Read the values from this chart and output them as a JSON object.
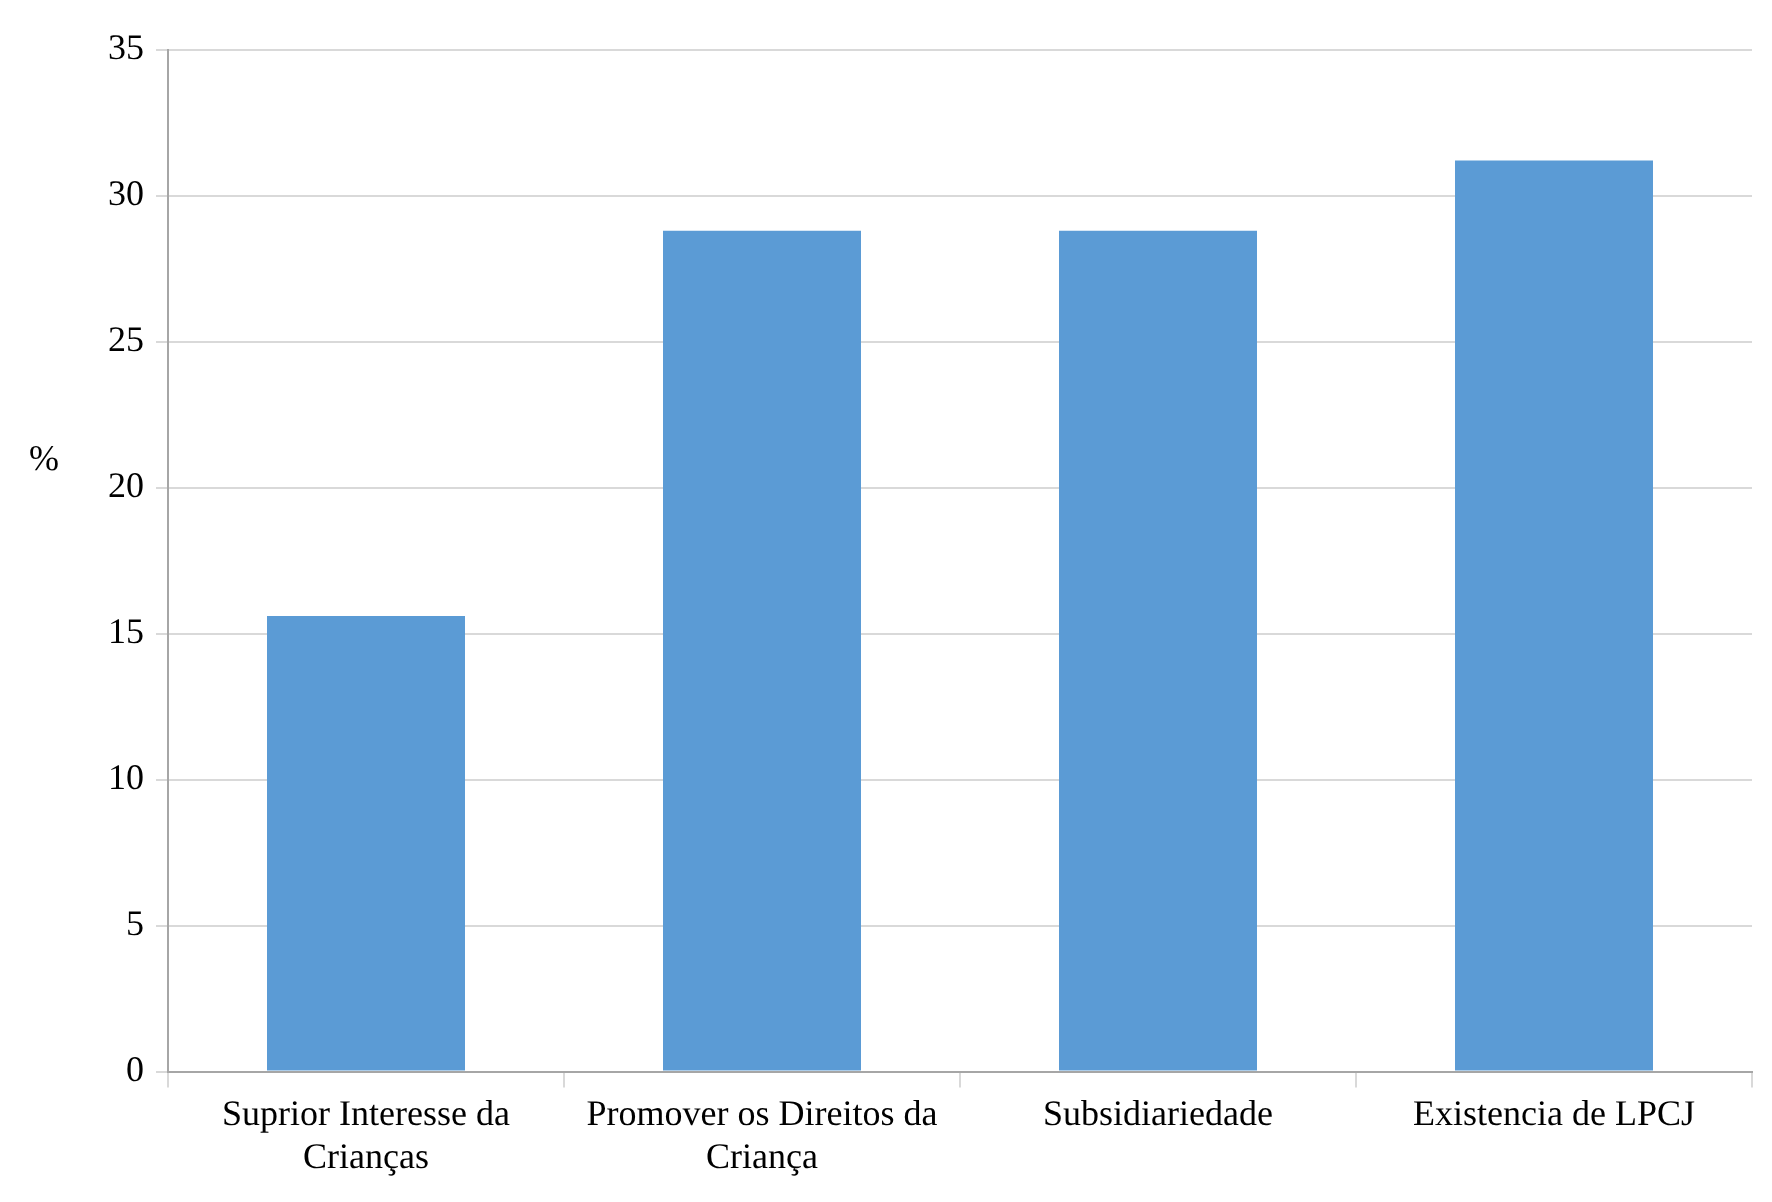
{
  "chart_data": {
    "type": "bar",
    "ylabel": "%",
    "categories": [
      "Suprior Interesse da Crianças",
      "Promover os Direitos da Criança",
      "Subsidiariedade",
      "Existencia de LPCJ"
    ],
    "values": [
      15.6,
      28.8,
      28.8,
      31.2
    ],
    "color": "#5b9bd5",
    "ylim": [
      0,
      35
    ],
    "yticks": [
      0,
      5,
      10,
      15,
      20,
      25,
      30,
      35
    ],
    "grid": "y"
  }
}
